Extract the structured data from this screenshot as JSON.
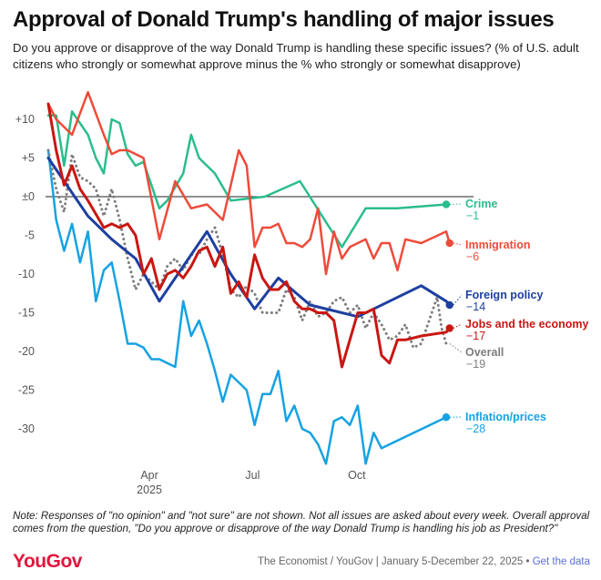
{
  "header": {
    "title": "Approval of Donald Trump's handling of major issues",
    "subtitle": "Do you approve or disapprove of the way Donald Trump is handling these specific issues? (% of U.S. adult citizens who strongly or somewhat approve minus the % who strongly or somewhat disapprove)"
  },
  "chart_data": {
    "type": "line",
    "title": "Approval of Donald Trump's handling of major issues",
    "xlabel": "",
    "ylabel": "",
    "x_range": [
      "2025-01-05",
      "2025-12-22"
    ],
    "ylim": [
      -35,
      12
    ],
    "y_ticks": [
      {
        "value": 10,
        "label": "+10"
      },
      {
        "value": 5,
        "label": "+5"
      },
      {
        "value": 0,
        "label": "±0"
      },
      {
        "value": -5,
        "label": "-5"
      },
      {
        "value": -10,
        "label": "-10"
      },
      {
        "value": -15,
        "label": "-15"
      },
      {
        "value": -20,
        "label": "-20"
      },
      {
        "value": -25,
        "label": "-25"
      },
      {
        "value": -30,
        "label": "-30"
      }
    ],
    "x_ticks": [
      {
        "date": "2025-04-01",
        "label": "Apr",
        "sublabel": "2025"
      },
      {
        "date": "2025-07-01",
        "label": "Jul",
        "sublabel": ""
      },
      {
        "date": "2025-10-01",
        "label": "Oct",
        "sublabel": ""
      }
    ],
    "grid": "none",
    "zero_line": true,
    "legend": "direct labels at right end of lines",
    "series": [
      {
        "name": "Crime",
        "end_label": "−1",
        "color": "#2bbd8c",
        "width": 2.5,
        "style": "solid",
        "points": [
          [
            "2025-01-05",
            10.5
          ],
          [
            "2025-01-12",
            10.5
          ],
          [
            "2025-01-19",
            4
          ],
          [
            "2025-01-26",
            11
          ],
          [
            "2025-02-09",
            8
          ],
          [
            "2025-02-16",
            5
          ],
          [
            "2025-02-23",
            3
          ],
          [
            "2025-03-02",
            10
          ],
          [
            "2025-03-09",
            9.5
          ],
          [
            "2025-03-16",
            5.5
          ],
          [
            "2025-03-23",
            4
          ],
          [
            "2025-03-30",
            4.5
          ],
          [
            "2025-04-13",
            -1.5
          ],
          [
            "2025-04-20",
            -0.5
          ],
          [
            "2025-05-04",
            3
          ],
          [
            "2025-05-11",
            8
          ],
          [
            "2025-05-18",
            5
          ],
          [
            "2025-06-01",
            3
          ],
          [
            "2025-06-15",
            -0.5
          ],
          [
            "2025-07-15",
            0
          ],
          [
            "2025-08-15",
            2
          ],
          [
            "2025-09-21",
            -6.5
          ],
          [
            "2025-10-12",
            -1.5
          ],
          [
            "2025-11-09",
            -1.5
          ],
          [
            "2025-12-22",
            -1
          ]
        ]
      },
      {
        "name": "Immigration",
        "end_label": "−6",
        "color": "#ee4b3a",
        "width": 2.5,
        "style": "solid",
        "points": [
          [
            "2025-01-05",
            12
          ],
          [
            "2025-01-12",
            10
          ],
          [
            "2025-01-26",
            8
          ],
          [
            "2025-02-09",
            13.5
          ],
          [
            "2025-02-23",
            8
          ],
          [
            "2025-03-02",
            5.5
          ],
          [
            "2025-03-09",
            6
          ],
          [
            "2025-03-16",
            6
          ],
          [
            "2025-03-30",
            5
          ],
          [
            "2025-04-13",
            -5.5
          ],
          [
            "2025-04-27",
            2
          ],
          [
            "2025-05-11",
            -1.5
          ],
          [
            "2025-05-25",
            -1
          ],
          [
            "2025-06-01",
            -2
          ],
          [
            "2025-06-08",
            -3
          ],
          [
            "2025-06-22",
            6
          ],
          [
            "2025-06-29",
            4
          ],
          [
            "2025-07-06",
            -6.5
          ],
          [
            "2025-07-13",
            -4
          ],
          [
            "2025-07-20",
            -4
          ],
          [
            "2025-07-27",
            -3.5
          ],
          [
            "2025-08-03",
            -6
          ],
          [
            "2025-08-10",
            -6
          ],
          [
            "2025-08-17",
            -6.5
          ],
          [
            "2025-08-24",
            -5.5
          ],
          [
            "2025-08-31",
            -1.5
          ],
          [
            "2025-09-07",
            -10
          ],
          [
            "2025-09-14",
            -4.5
          ],
          [
            "2025-09-21",
            -8
          ],
          [
            "2025-09-28",
            -6.5
          ],
          [
            "2025-10-05",
            -6
          ],
          [
            "2025-10-12",
            -5.5
          ],
          [
            "2025-10-19",
            -8
          ],
          [
            "2025-10-26",
            -6
          ],
          [
            "2025-11-02",
            -6
          ],
          [
            "2025-11-09",
            -9.5
          ],
          [
            "2025-11-16",
            -5.5
          ],
          [
            "2025-11-30",
            -6
          ],
          [
            "2025-12-22",
            -4.5
          ],
          [
            "2025-12-25",
            -6
          ]
        ]
      },
      {
        "name": "Foreign policy",
        "end_label": "−14",
        "color": "#1d3fa0",
        "width": 3,
        "style": "solid",
        "points": [
          [
            "2025-01-05",
            5
          ],
          [
            "2025-01-19",
            2
          ],
          [
            "2025-02-09",
            -2.5
          ],
          [
            "2025-03-02",
            -5.5
          ],
          [
            "2025-03-23",
            -8
          ],
          [
            "2025-04-13",
            -13.5
          ],
          [
            "2025-05-04",
            -9
          ],
          [
            "2025-05-25",
            -4.5
          ],
          [
            "2025-06-15",
            -10
          ],
          [
            "2025-07-06",
            -14.5
          ],
          [
            "2025-07-27",
            -10.5
          ],
          [
            "2025-08-24",
            -14
          ],
          [
            "2025-09-21",
            -15
          ],
          [
            "2025-10-05",
            -15.5
          ],
          [
            "2025-11-02",
            -13.5
          ],
          [
            "2025-11-30",
            -11.5
          ],
          [
            "2025-12-22",
            -13.5
          ],
          [
            "2025-12-25",
            -14
          ]
        ]
      },
      {
        "name": "Jobs and the economy",
        "end_label": "−17",
        "color": "#c81712",
        "width": 3,
        "style": "solid",
        "points": [
          [
            "2025-01-05",
            12
          ],
          [
            "2025-01-12",
            6
          ],
          [
            "2025-01-19",
            1.5
          ],
          [
            "2025-01-26",
            4
          ],
          [
            "2025-02-02",
            1
          ],
          [
            "2025-02-09",
            -0.5
          ],
          [
            "2025-02-23",
            -4
          ],
          [
            "2025-03-02",
            -3.5
          ],
          [
            "2025-03-09",
            -4
          ],
          [
            "2025-03-16",
            -3.5
          ],
          [
            "2025-03-23",
            -5
          ],
          [
            "2025-03-30",
            -10
          ],
          [
            "2025-04-06",
            -8
          ],
          [
            "2025-04-13",
            -12
          ],
          [
            "2025-04-20",
            -10
          ],
          [
            "2025-04-27",
            -9.5
          ],
          [
            "2025-05-04",
            -10.5
          ],
          [
            "2025-05-11",
            -9
          ],
          [
            "2025-05-18",
            -7
          ],
          [
            "2025-05-25",
            -6.5
          ],
          [
            "2025-06-01",
            -9
          ],
          [
            "2025-06-08",
            -6.5
          ],
          [
            "2025-06-15",
            -12.5
          ],
          [
            "2025-06-22",
            -11
          ],
          [
            "2025-06-29",
            -13
          ],
          [
            "2025-07-06",
            -7.5
          ],
          [
            "2025-07-13",
            -10.5
          ],
          [
            "2025-07-20",
            -12
          ],
          [
            "2025-07-27",
            -12
          ],
          [
            "2025-08-03",
            -11
          ],
          [
            "2025-08-10",
            -13.5
          ],
          [
            "2025-08-17",
            -14.5
          ],
          [
            "2025-08-24",
            -14.5
          ],
          [
            "2025-08-31",
            -15
          ],
          [
            "2025-09-07",
            -15
          ],
          [
            "2025-09-14",
            -16
          ],
          [
            "2025-09-21",
            -22
          ],
          [
            "2025-09-28",
            -18.5
          ],
          [
            "2025-10-05",
            -15
          ],
          [
            "2025-10-12",
            -15
          ],
          [
            "2025-10-19",
            -14.5
          ],
          [
            "2025-10-26",
            -20.5
          ],
          [
            "2025-11-02",
            -21.5
          ],
          [
            "2025-11-09",
            -18.5
          ],
          [
            "2025-11-16",
            -18.5
          ],
          [
            "2025-11-30",
            -18
          ],
          [
            "2025-12-22",
            -17.5
          ],
          [
            "2025-12-25",
            -17
          ]
        ]
      },
      {
        "name": "Overall",
        "end_label": "−19",
        "color": "#7d7d7d",
        "width": 3,
        "style": "dotted",
        "points": [
          [
            "2025-01-05",
            6
          ],
          [
            "2025-01-12",
            1
          ],
          [
            "2025-01-19",
            -2
          ],
          [
            "2025-01-26",
            5.5
          ],
          [
            "2025-02-02",
            2.5
          ],
          [
            "2025-02-09",
            2
          ],
          [
            "2025-02-16",
            1
          ],
          [
            "2025-02-23",
            -2.5
          ],
          [
            "2025-03-02",
            1
          ],
          [
            "2025-03-09",
            -3
          ],
          [
            "2025-03-16",
            -8
          ],
          [
            "2025-03-23",
            -12
          ],
          [
            "2025-03-30",
            -10
          ],
          [
            "2025-04-06",
            -11
          ],
          [
            "2025-04-13",
            -12
          ],
          [
            "2025-04-20",
            -9
          ],
          [
            "2025-04-27",
            -8
          ],
          [
            "2025-05-04",
            -9.5
          ],
          [
            "2025-05-11",
            -7.5
          ],
          [
            "2025-05-18",
            -7.5
          ],
          [
            "2025-05-25",
            -5.5
          ],
          [
            "2025-06-01",
            -4
          ],
          [
            "2025-06-08",
            -7.5
          ],
          [
            "2025-06-15",
            -12
          ],
          [
            "2025-06-22",
            -13
          ],
          [
            "2025-06-29",
            -11.5
          ],
          [
            "2025-07-06",
            -12.5
          ],
          [
            "2025-07-13",
            -15
          ],
          [
            "2025-07-20",
            -15
          ],
          [
            "2025-07-27",
            -15
          ],
          [
            "2025-08-03",
            -12
          ],
          [
            "2025-08-10",
            -13
          ],
          [
            "2025-08-17",
            -16
          ],
          [
            "2025-08-24",
            -13.5
          ],
          [
            "2025-08-31",
            -15.5
          ],
          [
            "2025-09-07",
            -15
          ],
          [
            "2025-09-14",
            -13.5
          ],
          [
            "2025-09-21",
            -13
          ],
          [
            "2025-09-28",
            -15
          ],
          [
            "2025-10-05",
            -14
          ],
          [
            "2025-10-12",
            -17
          ],
          [
            "2025-10-19",
            -15
          ],
          [
            "2025-10-26",
            -16.5
          ],
          [
            "2025-11-02",
            -18.5
          ],
          [
            "2025-11-09",
            -18
          ],
          [
            "2025-11-16",
            -16.5
          ],
          [
            "2025-11-23",
            -19.5
          ],
          [
            "2025-11-30",
            -19
          ],
          [
            "2025-12-07",
            -16
          ],
          [
            "2025-12-14",
            -13
          ],
          [
            "2025-12-18",
            -17
          ],
          [
            "2025-12-22",
            -19
          ]
        ]
      },
      {
        "name": "Inflation/prices",
        "end_label": "−28",
        "color": "#16a2e3",
        "width": 2.5,
        "style": "solid",
        "points": [
          [
            "2025-01-05",
            6
          ],
          [
            "2025-01-12",
            -3
          ],
          [
            "2025-01-19",
            -7
          ],
          [
            "2025-01-26",
            -3.5
          ],
          [
            "2025-02-02",
            -8.5
          ],
          [
            "2025-02-09",
            -4.5
          ],
          [
            "2025-02-16",
            -13.5
          ],
          [
            "2025-02-23",
            -9.5
          ],
          [
            "2025-03-02",
            -8.5
          ],
          [
            "2025-03-09",
            -13.5
          ],
          [
            "2025-03-16",
            -19
          ],
          [
            "2025-03-23",
            -19
          ],
          [
            "2025-03-30",
            -19.5
          ],
          [
            "2025-04-06",
            -21
          ],
          [
            "2025-04-13",
            -21
          ],
          [
            "2025-04-20",
            -21.5
          ],
          [
            "2025-04-27",
            -22
          ],
          [
            "2025-05-04",
            -13.5
          ],
          [
            "2025-05-11",
            -18
          ],
          [
            "2025-05-18",
            -16
          ],
          [
            "2025-05-25",
            -19
          ],
          [
            "2025-06-01",
            -22.5
          ],
          [
            "2025-06-08",
            -26.5
          ],
          [
            "2025-06-15",
            -23
          ],
          [
            "2025-06-22",
            -24
          ],
          [
            "2025-06-29",
            -25
          ],
          [
            "2025-07-06",
            -29.5
          ],
          [
            "2025-07-13",
            -25.5
          ],
          [
            "2025-07-20",
            -25.5
          ],
          [
            "2025-07-27",
            -22.5
          ],
          [
            "2025-08-03",
            -29
          ],
          [
            "2025-08-10",
            -27
          ],
          [
            "2025-08-17",
            -30
          ],
          [
            "2025-08-24",
            -30.5
          ],
          [
            "2025-08-31",
            -32
          ],
          [
            "2025-09-07",
            -34.5
          ],
          [
            "2025-09-14",
            -29
          ],
          [
            "2025-09-21",
            -28.5
          ],
          [
            "2025-09-28",
            -29.5
          ],
          [
            "2025-10-05",
            -27
          ],
          [
            "2025-10-12",
            -34.5
          ],
          [
            "2025-10-19",
            -30.5
          ],
          [
            "2025-10-26",
            -32.5
          ],
          [
            "2025-12-22",
            -28.5
          ]
        ]
      }
    ]
  },
  "note": "Note: Responses of \"no opinion\" and \"not sure\" are not shown. Not all issues are asked about every week. Overall approval comes from the question, \"Do you approve or disapprove of the way Donald Trump is handling his job as President?\"",
  "footer": {
    "brand": "YouGov",
    "source": "The Economist / YouGov | January 5-December 22, 2025 • ",
    "link": "Get the data"
  }
}
